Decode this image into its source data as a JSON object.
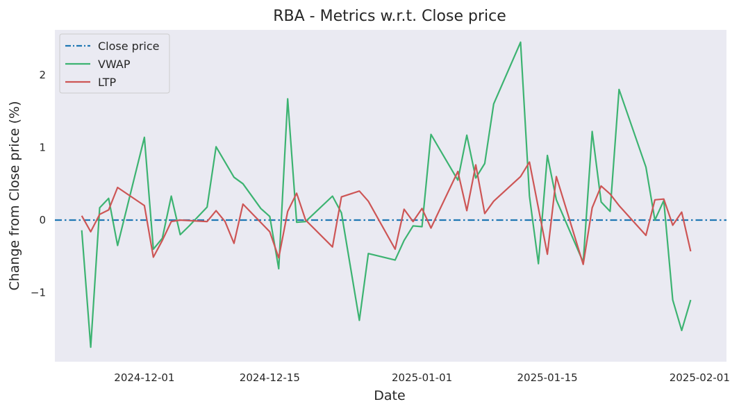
{
  "chart_data": {
    "type": "line",
    "title": "RBA - Metrics w.r.t. Close price",
    "xlabel": "Date",
    "ylabel": "Change from Close price (%)",
    "x_tick_labels": [
      "2024-12-01",
      "2024-12-15",
      "2025-01-01",
      "2025-01-15",
      "2025-02-01"
    ],
    "x_ticks": [
      "2024-12-01",
      "2024-12-15",
      "2025-01-01",
      "2025-01-15",
      "2025-02-01"
    ],
    "y_tick_labels": [
      "−1",
      "0",
      "1",
      "2"
    ],
    "y_ticks": [
      -1,
      0,
      1,
      2
    ],
    "xlim": [
      "2024-11-21",
      "2025-02-04"
    ],
    "ylim": [
      -1.95,
      2.62
    ],
    "grid": false,
    "legend_position": "top-left",
    "background": "#eaeaf2",
    "series": [
      {
        "name": "Close price",
        "style": "dashdot",
        "color": "#1f77b4",
        "x": [
          "2024-11-21",
          "2025-02-04"
        ],
        "y": [
          0,
          0
        ]
      },
      {
        "name": "VWAP",
        "style": "solid",
        "color": "#3cb371",
        "x": [
          "2024-11-24",
          "2024-11-25",
          "2024-11-26",
          "2024-11-27",
          "2024-11-28",
          "2024-12-01",
          "2024-12-02",
          "2024-12-03",
          "2024-12-04",
          "2024-12-05",
          "2024-12-06",
          "2024-12-08",
          "2024-12-09",
          "2024-12-11",
          "2024-12-12",
          "2024-12-14",
          "2024-12-15",
          "2024-12-16",
          "2024-12-17",
          "2024-12-18",
          "2024-12-19",
          "2024-12-22",
          "2024-12-23",
          "2024-12-25",
          "2024-12-26",
          "2024-12-29",
          "2024-12-30",
          "2024-12-31",
          "2025-01-01",
          "2025-01-02",
          "2025-01-05",
          "2025-01-06",
          "2025-01-07",
          "2025-01-08",
          "2025-01-09",
          "2025-01-12",
          "2025-01-13",
          "2025-01-14",
          "2025-01-15",
          "2025-01-16",
          "2025-01-19",
          "2025-01-20",
          "2025-01-21",
          "2025-01-22",
          "2025-01-23",
          "2025-01-26",
          "2025-01-27",
          "2025-01-28",
          "2025-01-29",
          "2025-01-30",
          "2025-01-31"
        ],
        "y": [
          -0.14,
          -1.75,
          0.17,
          0.3,
          -0.35,
          1.14,
          -0.4,
          -0.25,
          0.33,
          -0.2,
          -0.08,
          0.18,
          1.01,
          0.59,
          0.5,
          0.16,
          0.05,
          -0.67,
          1.67,
          -0.03,
          -0.02,
          0.33,
          0.1,
          -1.38,
          -0.46,
          -0.55,
          -0.28,
          -0.08,
          -0.09,
          1.18,
          0.55,
          1.17,
          0.58,
          0.78,
          1.6,
          2.45,
          0.33,
          -0.6,
          0.89,
          0.28,
          -0.58,
          1.22,
          0.25,
          0.12,
          1.8,
          0.73,
          0.0,
          0.27,
          -1.1,
          -1.52,
          -1.1
        ]
      },
      {
        "name": "LTP",
        "style": "solid",
        "color": "#cd5555",
        "x": [
          "2024-11-24",
          "2024-11-25",
          "2024-11-26",
          "2024-11-27",
          "2024-11-28",
          "2024-12-01",
          "2024-12-02",
          "2024-12-03",
          "2024-12-04",
          "2024-12-05",
          "2024-12-08",
          "2024-12-09",
          "2024-12-10",
          "2024-12-11",
          "2024-12-12",
          "2024-12-15",
          "2024-12-16",
          "2024-12-17",
          "2024-12-18",
          "2024-12-19",
          "2024-12-22",
          "2024-12-23",
          "2024-12-25",
          "2024-12-26",
          "2024-12-29",
          "2024-12-30",
          "2024-12-31",
          "2025-01-01",
          "2025-01-02",
          "2025-01-05",
          "2025-01-06",
          "2025-01-07",
          "2025-01-08",
          "2025-01-09",
          "2025-01-12",
          "2025-01-13",
          "2025-01-15",
          "2025-01-16",
          "2025-01-19",
          "2025-01-20",
          "2025-01-21",
          "2025-01-22",
          "2025-01-23",
          "2025-01-26",
          "2025-01-27",
          "2025-01-28",
          "2025-01-29",
          "2025-01-30",
          "2025-01-31"
        ],
        "y": [
          0.06,
          -0.16,
          0.08,
          0.14,
          0.45,
          0.2,
          -0.51,
          -0.28,
          -0.02,
          0.0,
          -0.02,
          0.13,
          -0.02,
          -0.32,
          0.22,
          -0.16,
          -0.52,
          0.12,
          0.37,
          0.0,
          -0.37,
          0.32,
          0.4,
          0.26,
          -0.4,
          0.15,
          -0.02,
          0.16,
          -0.11,
          0.67,
          0.13,
          0.76,
          0.09,
          0.26,
          0.6,
          0.8,
          -0.47,
          0.6,
          -0.61,
          0.17,
          0.47,
          0.36,
          0.2,
          -0.21,
          0.28,
          0.29,
          -0.07,
          0.11,
          -0.43
        ]
      }
    ]
  }
}
